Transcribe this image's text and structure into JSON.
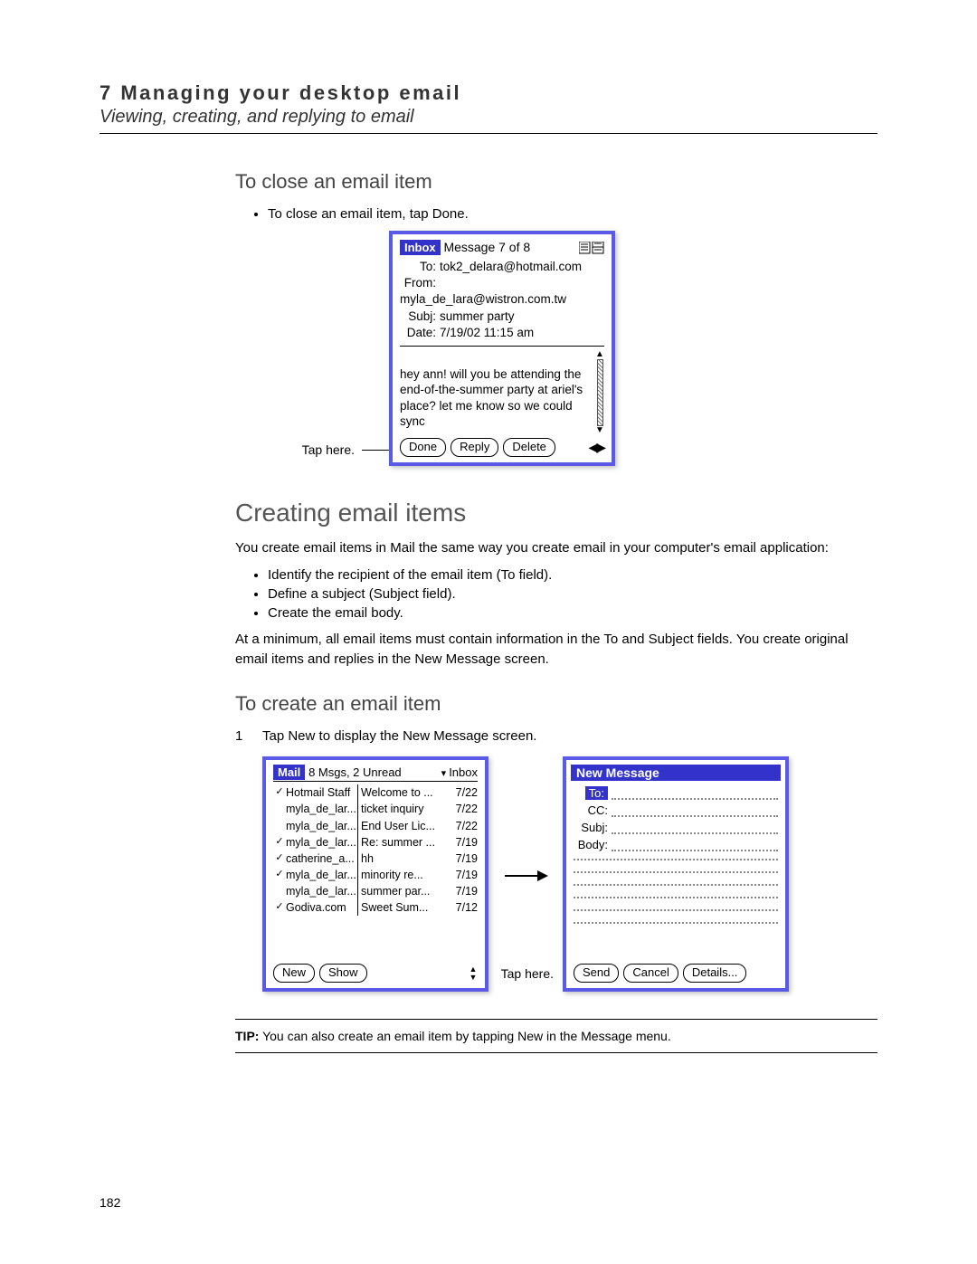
{
  "chapter": {
    "num_title": "7 Managing your desktop email",
    "subtitle": "Viewing, creating, and replying to email"
  },
  "close_section": {
    "heading": "To close an email item",
    "bullet": "To close an email item, tap Done.",
    "callout": "Tap here."
  },
  "inbox_device": {
    "tag": "Inbox",
    "count": "Message 7 of 8",
    "to_lbl": "To:",
    "to": "tok2_delara@hotmail.com",
    "from_lbl": "From:",
    "from": "myla_de_lara@wistron.com.tw",
    "subj_lbl": "Subj:",
    "subj": "summer party",
    "date_lbl": "Date:",
    "date": "7/19/02 11:15 am",
    "body": "hey ann! will you be attending the end-of-the-summer party at ariel's place? let me know so we could sync",
    "btn_done": "Done",
    "btn_reply": "Reply",
    "btn_delete": "Delete"
  },
  "creating": {
    "heading": "Creating email items",
    "intro": "You create email items in Mail the same way you create email in your computer's email application:",
    "bullets": [
      "Identify the recipient of the email item (To field).",
      "Define a subject (Subject field).",
      "Create the email body."
    ],
    "after": "At a minimum, all email items must contain information in the To and Subject fields. You create original email items and replies in the New Message screen."
  },
  "create_step": {
    "heading": "To create an email item",
    "num": "1",
    "text": "Tap New to display the New Message screen.",
    "callout": "Tap here."
  },
  "list_device": {
    "tag": "Mail",
    "status": "8 Msgs, 2 Unread",
    "dropdown": "Inbox",
    "rows": [
      {
        "chk": "✓",
        "from": "Hotmail Staff",
        "subj": "Welcome to ...",
        "date": "7/22"
      },
      {
        "chk": "",
        "from": "myla_de_lar...",
        "subj": "ticket inquiry",
        "date": "7/22"
      },
      {
        "chk": "",
        "from": "myla_de_lar...",
        "subj": "End User Lic...",
        "date": "7/22"
      },
      {
        "chk": "✓",
        "from": "myla_de_lar...",
        "subj": "Re: summer ...",
        "date": "7/19"
      },
      {
        "chk": "✓",
        "from": "catherine_a...",
        "subj": "hh",
        "date": "7/19"
      },
      {
        "chk": "✓",
        "from": "myla_de_lar...",
        "subj": "minority re...",
        "date": "7/19"
      },
      {
        "chk": "",
        "from": "myla_de_lar...",
        "subj": "summer par...",
        "date": "7/19"
      },
      {
        "chk": "✓",
        "from": "Godiva.com",
        "subj": "Sweet Sum...",
        "date": "7/12"
      }
    ],
    "btn_new": "New",
    "btn_show": "Show"
  },
  "new_device": {
    "title": "New Message",
    "to": "To:",
    "cc": "CC:",
    "subj": "Subj:",
    "body": "Body:",
    "btn_send": "Send",
    "btn_cancel": "Cancel",
    "btn_details": "Details..."
  },
  "tip": {
    "label": "TIP:",
    "text": "You can also create an email item by tapping New in the Message menu."
  },
  "page": "182",
  "colors": {
    "device_border": "#5a5ae6",
    "accent": "#3333cc"
  }
}
